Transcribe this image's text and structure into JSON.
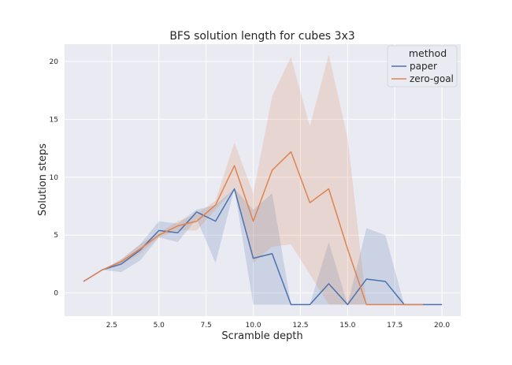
{
  "chart_data": {
    "type": "line",
    "title": "BFS solution length for cubes 3x3",
    "xlabel": "Scramble depth",
    "ylabel": "Solution steps",
    "xlim": [
      0.0,
      21.0
    ],
    "ylim": [
      -2.0,
      21.5
    ],
    "x_ticks": [
      2.5,
      5.0,
      7.5,
      10.0,
      12.5,
      15.0,
      17.5,
      20.0
    ],
    "x_tick_labels": [
      "2.5",
      "5.0",
      "7.5",
      "10.0",
      "12.5",
      "15.0",
      "17.5",
      "20.0"
    ],
    "y_ticks": [
      0,
      5,
      10,
      15,
      20
    ],
    "y_tick_labels": [
      "0",
      "5",
      "10",
      "15",
      "20"
    ],
    "grid": true,
    "legend": {
      "title": "method",
      "placement": "top-right"
    },
    "background": "#eaeaf2",
    "series": [
      {
        "name": "paper",
        "color": "#4c72b0",
        "x": [
          1,
          2,
          3,
          4,
          5,
          6,
          7,
          8,
          9,
          10,
          11,
          12,
          13,
          14,
          15,
          16,
          17,
          18,
          19,
          20
        ],
        "y": [
          1.0,
          2.0,
          2.5,
          3.7,
          5.4,
          5.2,
          7.0,
          6.2,
          9.0,
          3.0,
          3.4,
          -1.0,
          -1.0,
          0.8,
          -1.0,
          1.2,
          1.0,
          -1.0,
          -1.0,
          -1.0
        ],
        "ci_low": [
          1.0,
          2.0,
          1.8,
          2.8,
          4.8,
          4.4,
          6.4,
          2.6,
          9.0,
          -1.0,
          -1.0,
          -1.0,
          -1.0,
          -1.0,
          -1.0,
          -1.0,
          -1.0,
          -1.0,
          -1.0,
          -1.0
        ],
        "ci_high": [
          1.0,
          2.0,
          2.9,
          4.2,
          6.2,
          6.0,
          7.2,
          7.6,
          9.0,
          7.2,
          8.6,
          -1.0,
          -1.0,
          4.4,
          -1.0,
          5.6,
          5.0,
          -1.0,
          -1.0,
          -1.0
        ]
      },
      {
        "name": "zero-goal",
        "color": "#dd8452",
        "x": [
          1,
          2,
          3,
          4,
          5,
          6,
          7,
          8,
          9,
          10,
          11,
          12,
          13,
          14,
          15,
          16,
          17,
          18,
          19
        ],
        "y": [
          1.0,
          2.0,
          2.7,
          3.8,
          5.0,
          5.8,
          6.2,
          7.6,
          11.0,
          6.2,
          10.6,
          12.2,
          7.8,
          9.0,
          3.8,
          -1.0,
          -1.0,
          -1.0,
          -1.0
        ],
        "ci_low": [
          1.0,
          2.0,
          2.4,
          3.4,
          4.8,
          5.4,
          5.4,
          7.2,
          9.0,
          2.6,
          4.0,
          4.2,
          1.6,
          -1.0,
          -1.0,
          -1.0,
          -1.0,
          -1.0,
          -1.0
        ],
        "ci_high": [
          1.0,
          2.0,
          2.9,
          4.2,
          5.2,
          6.2,
          6.8,
          8.0,
          13.0,
          8.6,
          17.0,
          20.4,
          14.4,
          20.6,
          13.4,
          -1.0,
          -1.0,
          -1.0,
          -1.0
        ]
      }
    ]
  }
}
